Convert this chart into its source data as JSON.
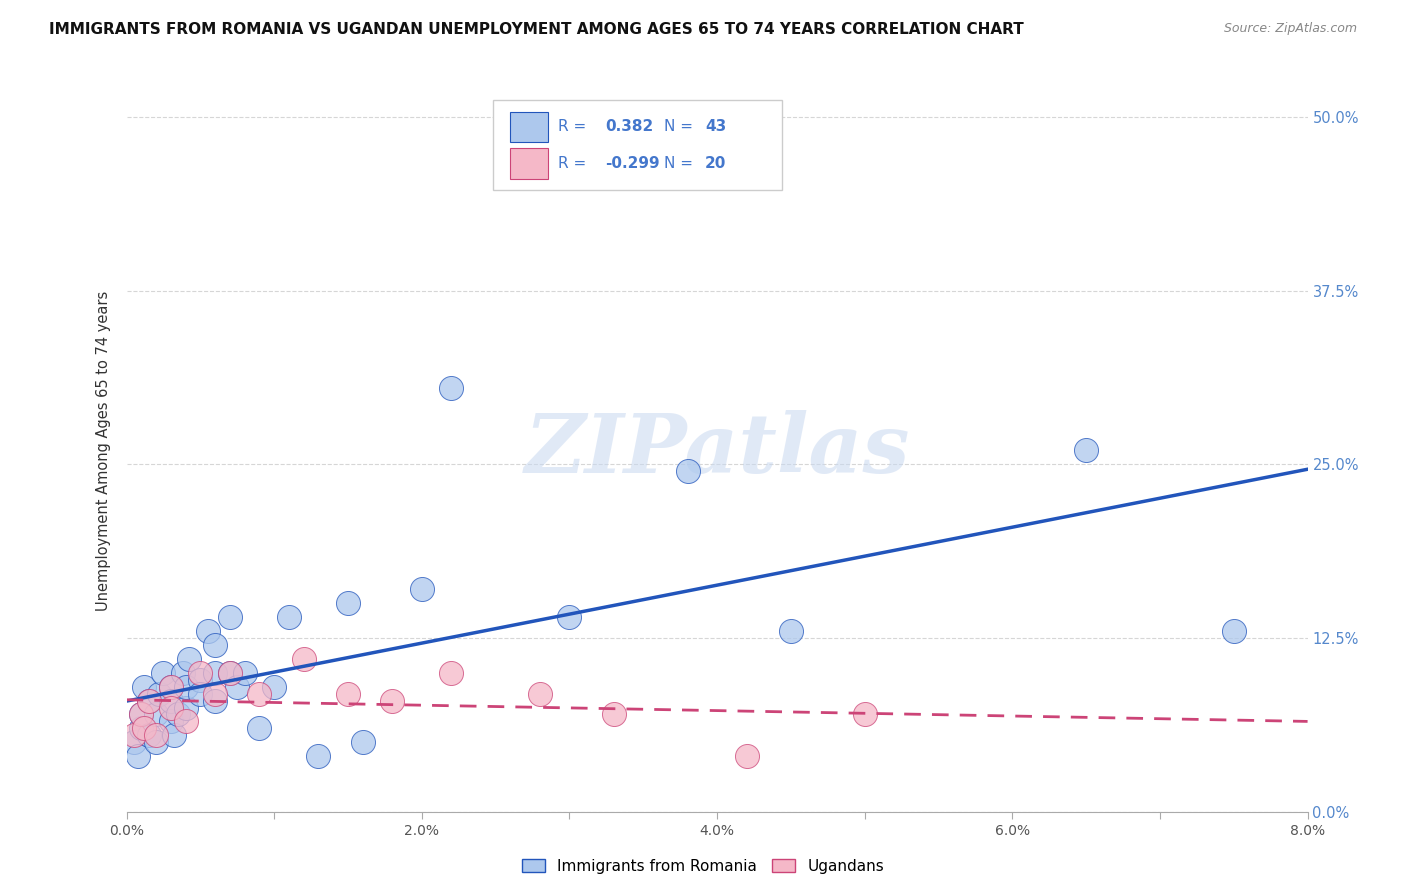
{
  "title": "IMMIGRANTS FROM ROMANIA VS UGANDAN UNEMPLOYMENT AMONG AGES 65 TO 74 YEARS CORRELATION CHART",
  "source": "Source: ZipAtlas.com",
  "ylabel": "Unemployment Among Ages 65 to 74 years",
  "xlim": [
    0.0,
    0.08
  ],
  "ylim": [
    0.0,
    0.52
  ],
  "x_tick_positions": [
    0.0,
    0.01,
    0.02,
    0.03,
    0.04,
    0.05,
    0.06,
    0.07,
    0.08
  ],
  "x_tick_labels": [
    "0.0%",
    "",
    "2.0%",
    "",
    "4.0%",
    "",
    "6.0%",
    "",
    "8.0%"
  ],
  "y_tick_positions": [
    0.0,
    0.125,
    0.25,
    0.375,
    0.5
  ],
  "y_tick_labels_right": [
    "0.0%",
    "12.5%",
    "25.0%",
    "37.5%",
    "50.0%"
  ],
  "romania_R": "0.382",
  "romania_N": "43",
  "uganda_R": "-0.299",
  "uganda_N": "20",
  "romania_color": "#adc8ed",
  "romania_line_color": "#2255bb",
  "uganda_color": "#f5b8c8",
  "uganda_line_color": "#cc4477",
  "background_color": "#ffffff",
  "grid_color": "#cccccc",
  "watermark_text": "ZIPatlas",
  "legend_text_color": "#4477cc",
  "legend_R_label": "R =",
  "legend_N_label": "N =",
  "romania_scatter_x": [
    0.0005,
    0.0008,
    0.001,
    0.001,
    0.0012,
    0.0015,
    0.0015,
    0.002,
    0.002,
    0.0022,
    0.0025,
    0.003,
    0.003,
    0.003,
    0.0032,
    0.0035,
    0.0038,
    0.004,
    0.004,
    0.0042,
    0.005,
    0.005,
    0.0055,
    0.006,
    0.006,
    0.006,
    0.007,
    0.007,
    0.0075,
    0.008,
    0.009,
    0.01,
    0.011,
    0.013,
    0.015,
    0.016,
    0.02,
    0.022,
    0.03,
    0.038,
    0.045,
    0.065,
    0.075
  ],
  "romania_scatter_y": [
    0.05,
    0.04,
    0.06,
    0.07,
    0.09,
    0.055,
    0.08,
    0.07,
    0.05,
    0.085,
    0.1,
    0.065,
    0.09,
    0.08,
    0.055,
    0.07,
    0.1,
    0.075,
    0.09,
    0.11,
    0.095,
    0.085,
    0.13,
    0.1,
    0.08,
    0.12,
    0.1,
    0.14,
    0.09,
    0.1,
    0.06,
    0.09,
    0.14,
    0.04,
    0.15,
    0.05,
    0.16,
    0.305,
    0.14,
    0.245,
    0.13,
    0.26,
    0.13
  ],
  "uganda_scatter_x": [
    0.0005,
    0.001,
    0.0012,
    0.0015,
    0.002,
    0.003,
    0.003,
    0.004,
    0.005,
    0.006,
    0.007,
    0.009,
    0.012,
    0.015,
    0.018,
    0.022,
    0.028,
    0.033,
    0.042,
    0.05
  ],
  "uganda_scatter_y": [
    0.055,
    0.07,
    0.06,
    0.08,
    0.055,
    0.09,
    0.075,
    0.065,
    0.1,
    0.085,
    0.1,
    0.085,
    0.11,
    0.085,
    0.08,
    0.1,
    0.085,
    0.07,
    0.04,
    0.07
  ]
}
